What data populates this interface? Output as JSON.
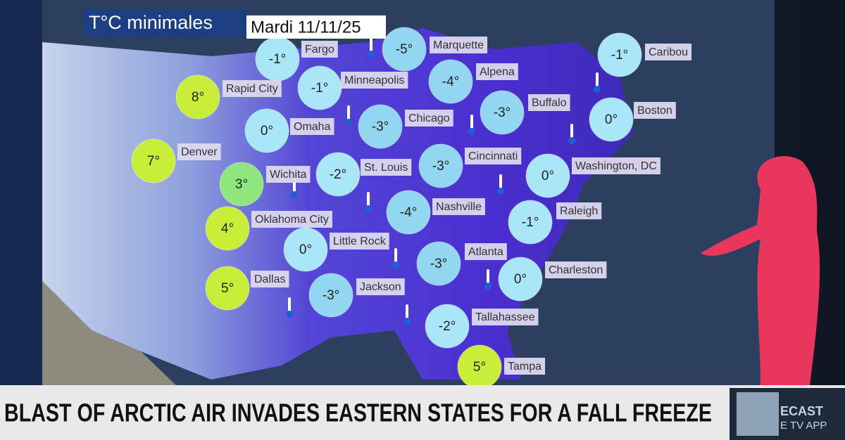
{
  "header": {
    "title": "T°C minimales",
    "date": "Mardi 11/11/25"
  },
  "cities": [
    {
      "name": "Fargo",
      "temp": "-1°",
      "color": "#a9e6f8"
    },
    {
      "name": "Marquette",
      "temp": "-5°",
      "color": "#93d6f1"
    },
    {
      "name": "Caribou",
      "temp": "-1°",
      "color": "#a9e6f8"
    },
    {
      "name": "Rapid City",
      "temp": "8°",
      "color": "#c8ee3a"
    },
    {
      "name": "Minneapolis",
      "temp": "-1°",
      "color": "#a9e6f8"
    },
    {
      "name": "Alpena",
      "temp": "-4°",
      "color": "#93d6f1"
    },
    {
      "name": "Buffalo",
      "temp": "-3°",
      "color": "#93d6f1"
    },
    {
      "name": "Boston",
      "temp": "0°",
      "color": "#a9e6f8"
    },
    {
      "name": "Omaha",
      "temp": "0°",
      "color": "#a9e6f8"
    },
    {
      "name": "Chicago",
      "temp": "-3°",
      "color": "#93d6f1"
    },
    {
      "name": "Denver",
      "temp": "7°",
      "color": "#c8ee3a"
    },
    {
      "name": "Cincinnati",
      "temp": "-3°",
      "color": "#93d6f1"
    },
    {
      "name": "St. Louis",
      "temp": "-2°",
      "color": "#a9e6f8"
    },
    {
      "name": "Washington, DC",
      "temp": "0°",
      "color": "#a9e6f8"
    },
    {
      "name": "Wichita",
      "temp": "3°",
      "color": "#8fe67c"
    },
    {
      "name": "Nashville",
      "temp": "-4°",
      "color": "#93d6f1"
    },
    {
      "name": "Oklahoma City",
      "temp": "4°",
      "color": "#c8ee3a"
    },
    {
      "name": "Raleigh",
      "temp": "-1°",
      "color": "#a9e6f8"
    },
    {
      "name": "Little Rock",
      "temp": "0°",
      "color": "#a9e6f8"
    },
    {
      "name": "Atlanta",
      "temp": "-3°",
      "color": "#93d6f1"
    },
    {
      "name": "Charleston",
      "temp": "0°",
      "color": "#a9e6f8"
    },
    {
      "name": "Dallas",
      "temp": "5°",
      "color": "#c8ee3a"
    },
    {
      "name": "Jackson",
      "temp": "-3°",
      "color": "#93d6f1"
    },
    {
      "name": "Tallahassee",
      "temp": "-2°",
      "color": "#a9e6f8"
    },
    {
      "name": "Tampa",
      "temp": "5°",
      "color": "#c8ee3a"
    }
  ],
  "banner": {
    "headline": "BLAST OF ARCTIC AIR INVADES EASTERN STATES FOR A FALL FREEZE",
    "promo": [
      "ECAST",
      "E TV APP"
    ]
  }
}
